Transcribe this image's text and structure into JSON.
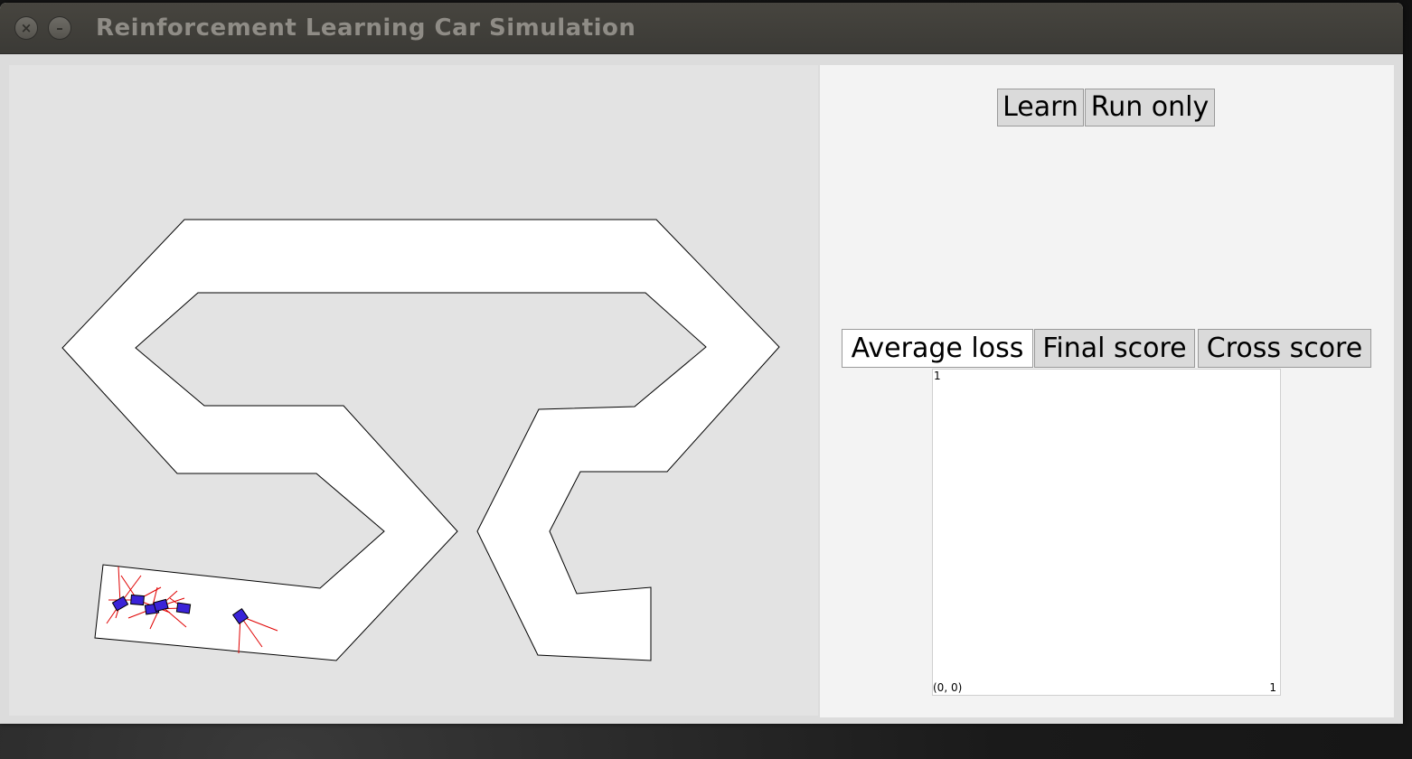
{
  "window": {
    "title": "Reinforcement Learning Car Simulation",
    "close_icon": "close-icon",
    "minimize_icon": "minimize-icon"
  },
  "controls": {
    "learn_label": "Learn",
    "run_only_label": "Run only"
  },
  "tabs": [
    {
      "label": "Average loss",
      "selected": true
    },
    {
      "label": "Final score",
      "selected": false
    },
    {
      "label": "Cross score",
      "selected": false
    }
  ],
  "graph": {
    "y_max_label": "1",
    "origin_label": "(0, 0)",
    "x_max_label": "1"
  },
  "simulation": {
    "track_color": "#ffffff",
    "background_color": "#e3e3e3",
    "car_fill_color": "#3a23d8",
    "sensor_color": "#e00000",
    "car_count": 6
  }
}
